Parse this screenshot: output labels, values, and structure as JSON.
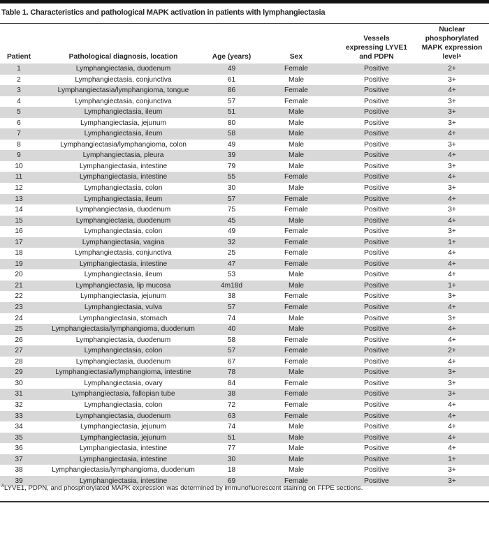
{
  "title": "Table 1. Characteristics and pathological MAPK activation in patients with lymphangiectasia",
  "columns": [
    "Patient",
    "Pathological diagnosis, location",
    "Age (years)",
    "Sex",
    "Vessels expressing LYVE1 and PDPN",
    "Nuclear phosphorylated MAPK expression level"
  ],
  "column_footnote_marker": "A",
  "rows": [
    [
      "1",
      "Lymphangiectasia, duodenum",
      "49",
      "Female",
      "Positive",
      "2+"
    ],
    [
      "2",
      "Lymphangiectasia, conjunctiva",
      "61",
      "Male",
      "Positive",
      "3+"
    ],
    [
      "3",
      "Lymphangiectasia/lymphangioma, tongue",
      "86",
      "Female",
      "Positive",
      "4+"
    ],
    [
      "4",
      "Lymphangiectasia, conjunctiva",
      "57",
      "Female",
      "Positive",
      "3+"
    ],
    [
      "5",
      "Lymphangiectasia, ileum",
      "51",
      "Male",
      "Positive",
      "3+"
    ],
    [
      "6",
      "Lymphangiectasia, jejunum",
      "80",
      "Male",
      "Positive",
      "3+"
    ],
    [
      "7",
      "Lymphangiectasia, ileum",
      "58",
      "Male",
      "Positive",
      "4+"
    ],
    [
      "8",
      "Lymphangiectasia/lymphangioma, colon",
      "49",
      "Male",
      "Positive",
      "3+"
    ],
    [
      "9",
      "Lymphangiectasia, pleura",
      "39",
      "Male",
      "Positive",
      "4+"
    ],
    [
      "10",
      "Lymphangiectasia, intestine",
      "79",
      "Male",
      "Positive",
      "3+"
    ],
    [
      "11",
      "Lymphangiectasia, intestine",
      "55",
      "Female",
      "Positive",
      "4+"
    ],
    [
      "12",
      "Lymphangiectasia, colon",
      "30",
      "Male",
      "Positive",
      "3+"
    ],
    [
      "13",
      "Lymphangiectasia, ileum",
      "57",
      "Female",
      "Positive",
      "4+"
    ],
    [
      "14",
      "Lymphangiectasia, duodenum",
      "75",
      "Female",
      "Positive",
      "3+"
    ],
    [
      "15",
      "Lymphangiectasia, duodenum",
      "45",
      "Male",
      "Positive",
      "4+"
    ],
    [
      "16",
      "Lymphangiectasia, colon",
      "49",
      "Female",
      "Positive",
      "3+"
    ],
    [
      "17",
      "Lymphangiectasia, vagina",
      "32",
      "Female",
      "Positive",
      "1+"
    ],
    [
      "18",
      "Lymphangiectasia, conjunctiva",
      "25",
      "Female",
      "Positive",
      "4+"
    ],
    [
      "19",
      "Lymphangiectasia, intestine",
      "47",
      "Female",
      "Positive",
      "4+"
    ],
    [
      "20",
      "Lymphangiectasia, ileum",
      "53",
      "Male",
      "Positive",
      "4+"
    ],
    [
      "21",
      "Lymphangiectasia, lip mucosa",
      "4m18d",
      "Male",
      "Positive",
      "1+"
    ],
    [
      "22",
      "Lymphangiectasia, jejunum",
      "38",
      "Female",
      "Positive",
      "3+"
    ],
    [
      "23",
      "Lymphangiectasia, vulva",
      "57",
      "Female",
      "Positive",
      "4+"
    ],
    [
      "24",
      "Lymphangiectasia, stomach",
      "74",
      "Male",
      "Positive",
      "3+"
    ],
    [
      "25",
      "Lymphangiectasia/lymphangioma, duodenum",
      "40",
      "Male",
      "Positive",
      "4+"
    ],
    [
      "26",
      "Lymphangiectasia, duodenum",
      "58",
      "Female",
      "Positive",
      "4+"
    ],
    [
      "27",
      "Lymphangiectasia, colon",
      "57",
      "Female",
      "Positive",
      "2+"
    ],
    [
      "28",
      "Lymphangiectasia, duodenum",
      "67",
      "Female",
      "Positive",
      "4+"
    ],
    [
      "29",
      "Lymphangiectasia/lymphangioma, intestine",
      "78",
      "Male",
      "Positive",
      "3+"
    ],
    [
      "30",
      "Lymphangiectasia, ovary",
      "84",
      "Female",
      "Positive",
      "3+"
    ],
    [
      "31",
      "Lymphangiectasia, fallopian tube",
      "38",
      "Female",
      "Positive",
      "3+"
    ],
    [
      "32",
      "Lymphangiectasia, colon",
      "72",
      "Female",
      "Positive",
      "4+"
    ],
    [
      "33",
      "Lymphangiectasia, duodenum",
      "63",
      "Female",
      "Positive",
      "4+"
    ],
    [
      "34",
      "Lymphangiectasia, jejunum",
      "74",
      "Male",
      "Positive",
      "4+"
    ],
    [
      "35",
      "Lymphangiectasia, jejunum",
      "51",
      "Male",
      "Positive",
      "4+"
    ],
    [
      "36",
      "Lymphangiectasia, intestine",
      "77",
      "Male",
      "Positive",
      "4+"
    ],
    [
      "37",
      "Lymphangiectasia, intestine",
      "30",
      "Male",
      "Positive",
      "1+"
    ],
    [
      "38",
      "Lymphangiectasia/lymphangioma, duodenum",
      "18",
      "Male",
      "Positive",
      "3+"
    ],
    [
      "39",
      "Lymphangiectasia, intestine",
      "69",
      "Female",
      "Positive",
      "3+"
    ]
  ],
  "footnote": {
    "marker": "A",
    "text": "LYVE1, PDPN, and phosphorylated MAPK expression was determined by immunofluorescent staining on FFPE sections."
  },
  "colors": {
    "shaded_row": "#d8d8d8",
    "rule": "#333333"
  }
}
